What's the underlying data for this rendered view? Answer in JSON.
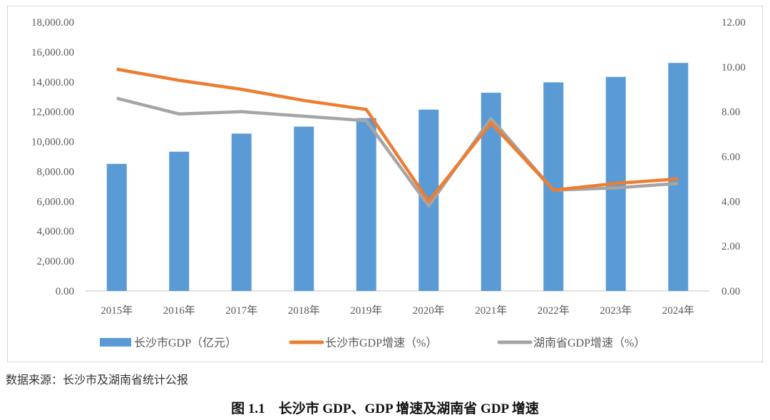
{
  "chart_data": {
    "type": "bar+line",
    "categories": [
      "2015年",
      "2016年",
      "2017年",
      "2018年",
      "2019年",
      "2020年",
      "2021年",
      "2022年",
      "2023年",
      "2024年"
    ],
    "series": [
      {
        "name": "长沙市GDP（亿元）",
        "type": "bar",
        "axis": "left",
        "color": "#5b9bd5",
        "values": [
          8510,
          9323,
          10536,
          11003,
          11574,
          12142,
          13271,
          13966,
          14331,
          15268
        ]
      },
      {
        "name": "长沙市GDP增速（%）",
        "type": "line",
        "axis": "right",
        "color": "#ed7d31",
        "values": [
          9.9,
          9.4,
          9.0,
          8.5,
          8.1,
          4.0,
          7.5,
          4.5,
          4.8,
          5.0
        ]
      },
      {
        "name": "湖南省GDP增速（%）",
        "type": "line",
        "axis": "right",
        "color": "#a5a5a5",
        "values": [
          8.6,
          7.9,
          8.0,
          7.8,
          7.6,
          3.8,
          7.7,
          4.5,
          4.6,
          4.8
        ]
      }
    ],
    "left_axis": {
      "range": [
        0,
        18000
      ],
      "ticks": [
        "0.00",
        "2,000.00",
        "4,000.00",
        "6,000.00",
        "8,000.00",
        "10,000.00",
        "12,000.00",
        "14,000.00",
        "16,000.00",
        "18,000.00"
      ]
    },
    "right_axis": {
      "range": [
        0,
        12
      ],
      "ticks": [
        "0.00",
        "2.00",
        "4.00",
        "6.00",
        "8.00",
        "10.00",
        "12.00"
      ]
    },
    "legend_position": "bottom",
    "grid": false
  },
  "source": "数据来源：长沙市及湖南省统计公报",
  "caption": "图 1.1　长沙市 GDP、GDP 增速及湖南省 GDP 增速"
}
